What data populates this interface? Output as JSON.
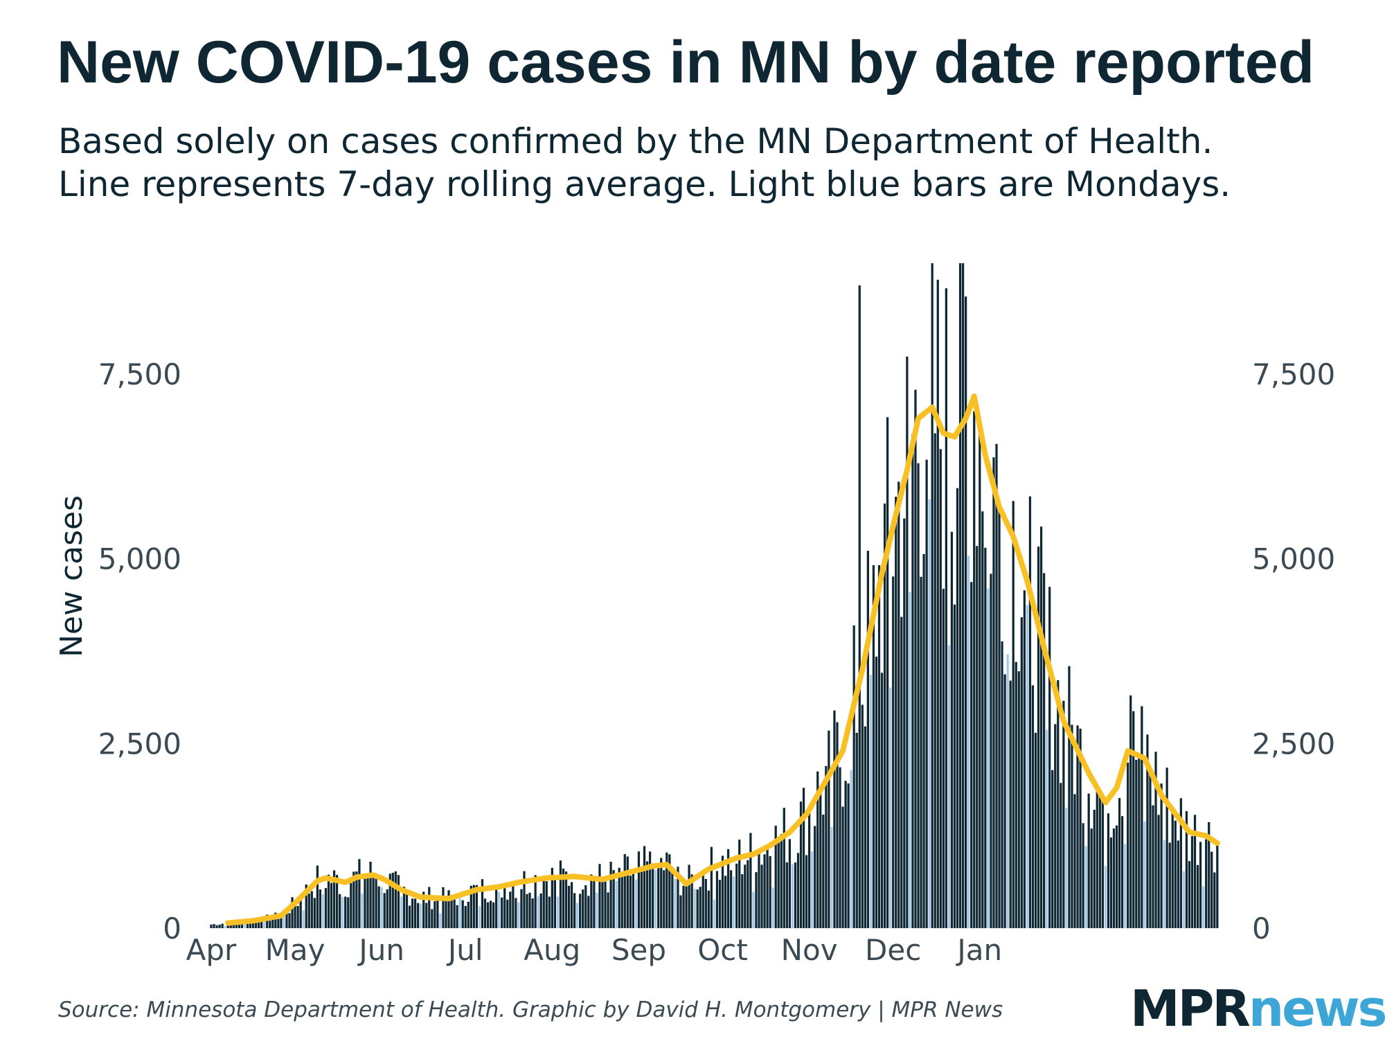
{
  "title": "New COVID-19 cases in MN by date reported",
  "subtitle_line1": "Based solely on cases confirmed by the MN Department of Health.",
  "subtitle_line2": "Line represents 7-day rolling average. Light blue bars are Mondays.",
  "source": "Source: Minnesota Department of Health. Graphic by David H. Montgomery | MPR News",
  "logo": {
    "mpr": "MPR",
    "news": "news"
  },
  "colors": {
    "bar": "#0f2733",
    "monday_bar": "#a6c8e4",
    "line": "#f7c125",
    "text": "#0f2733"
  },
  "chart_data": {
    "type": "bar",
    "title": "New COVID-19 cases in MN by date reported",
    "ylabel": "New cases",
    "xlabel": "",
    "ylim": [
      0,
      9000
    ],
    "y_ticks": [
      0,
      2500,
      5000,
      7500
    ],
    "y_tick_labels": [
      "0",
      "2,500",
      "5,000",
      "7,500"
    ],
    "x_tick_labels": [
      "Apr",
      "May",
      "Jun",
      "Jul",
      "Aug",
      "Sep",
      "Oct",
      "Nov",
      "Dec",
      "Jan"
    ],
    "x_tick_day_index": [
      0,
      30,
      61,
      91,
      122,
      153,
      183,
      214,
      244,
      275
    ],
    "start_date": "Apr 1",
    "first_weekday": 3,
    "line_series_name": "7-day rolling average",
    "bar_series_name": "New cases",
    "rolling_average_anchors": [
      [
        0,
        50
      ],
      [
        15,
        100
      ],
      [
        25,
        170
      ],
      [
        30,
        340
      ],
      [
        38,
        640
      ],
      [
        41,
        680
      ],
      [
        48,
        620
      ],
      [
        52,
        690
      ],
      [
        58,
        720
      ],
      [
        62,
        660
      ],
      [
        68,
        520
      ],
      [
        75,
        420
      ],
      [
        85,
        400
      ],
      [
        95,
        520
      ],
      [
        103,
        560
      ],
      [
        110,
        620
      ],
      [
        120,
        680
      ],
      [
        130,
        700
      ],
      [
        140,
        660
      ],
      [
        150,
        760
      ],
      [
        158,
        840
      ],
      [
        163,
        860
      ],
      [
        170,
        600
      ],
      [
        178,
        800
      ],
      [
        188,
        950
      ],
      [
        194,
        1000
      ],
      [
        200,
        1120
      ],
      [
        207,
        1300
      ],
      [
        213,
        1540
      ],
      [
        220,
        2000
      ],
      [
        226,
        2400
      ],
      [
        233,
        3500
      ],
      [
        240,
        4800
      ],
      [
        245,
        5600
      ],
      [
        249,
        6200
      ],
      [
        253,
        6900
      ],
      [
        258,
        7050
      ],
      [
        262,
        6700
      ],
      [
        266,
        6650
      ],
      [
        270,
        6900
      ],
      [
        273,
        7200
      ],
      [
        277,
        6400
      ],
      [
        282,
        5700
      ],
      [
        287,
        5300
      ],
      [
        292,
        4700
      ],
      [
        298,
        3800
      ],
      [
        305,
        2800
      ],
      [
        314,
        2100
      ],
      [
        320,
        1700
      ],
      [
        324,
        1900
      ],
      [
        328,
        2400
      ],
      [
        334,
        2300
      ],
      [
        340,
        1800
      ],
      [
        346,
        1500
      ],
      [
        350,
        1300
      ],
      [
        356,
        1250
      ],
      [
        360,
        1150
      ]
    ],
    "highlighted_points": [
      {
        "day": 268,
        "value": 9000
      },
      {
        "day": 232,
        "value": 8700
      },
      {
        "day": 329,
        "value": 3150
      }
    ],
    "peak_daily_value": 9000
  }
}
